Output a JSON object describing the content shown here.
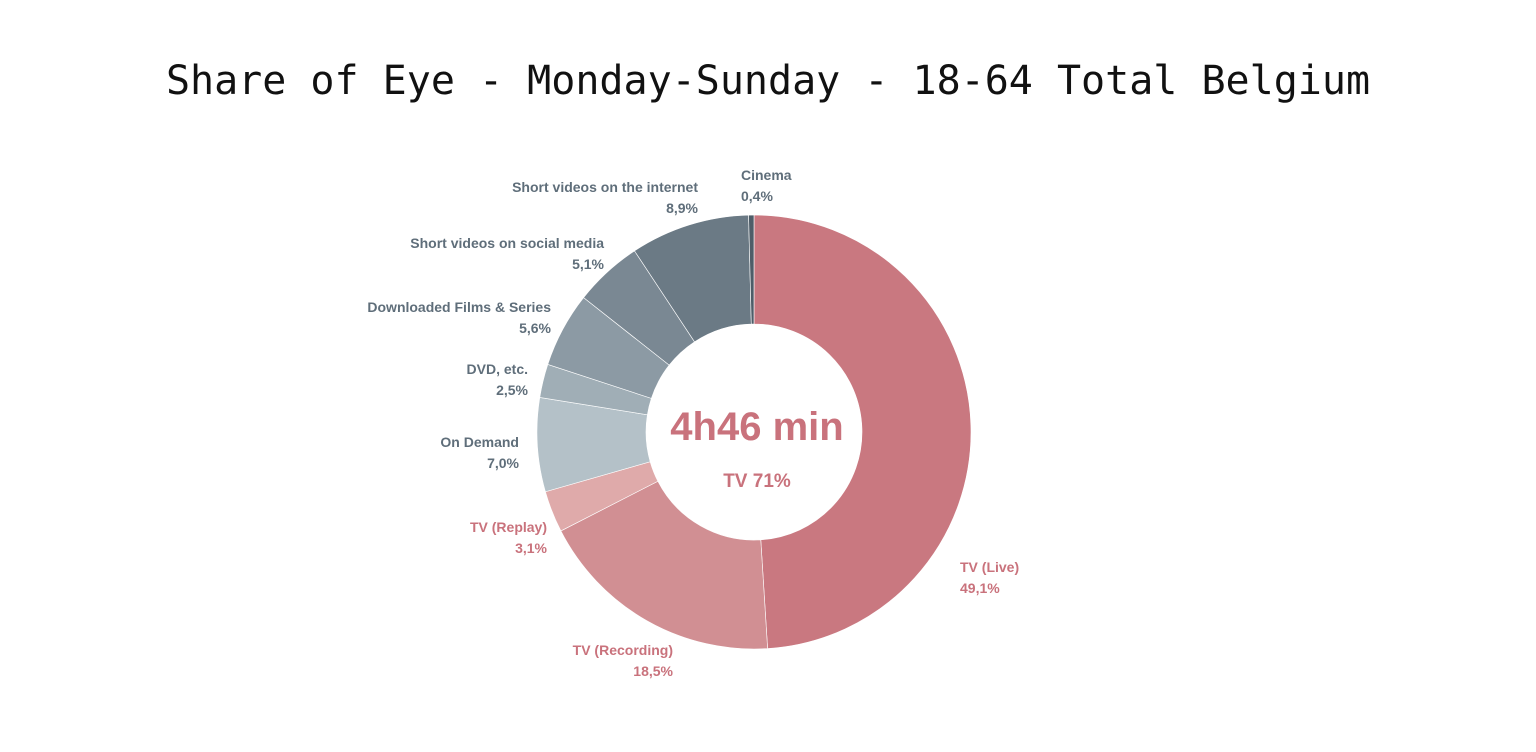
{
  "chart_data": {
    "type": "pie",
    "title": "Share of Eye - Monday-Sunday - 18-64 Total Belgium",
    "center_value": "4h46 min",
    "center_subtitle": "TV 71%",
    "slices": [
      {
        "label": "TV (Live)",
        "value_text": "49,1%",
        "value": 49.1,
        "color": "#c97880",
        "label_color": "#c9727c"
      },
      {
        "label": "TV (Recording)",
        "value_text": "18,5%",
        "value": 18.5,
        "color": "#d18f93",
        "label_color": "#c9727c"
      },
      {
        "label": "TV (Replay)",
        "value_text": "3,1%",
        "value": 3.1,
        "color": "#dfaaaa",
        "label_color": "#c9727c"
      },
      {
        "label": "On Demand",
        "value_text": "7,0%",
        "value": 7.0,
        "color": "#b4c1c8",
        "label_color": "#5f6e7a"
      },
      {
        "label": "DVD, etc.",
        "value_text": "2,5%",
        "value": 2.5,
        "color": "#a0aeb6",
        "label_color": "#5f6e7a"
      },
      {
        "label": "Downloaded Films & Series",
        "value_text": "5,6%",
        "value": 5.6,
        "color": "#8c9aa4",
        "label_color": "#5f6e7a"
      },
      {
        "label": "Short videos on social media",
        "value_text": "5,1%",
        "value": 5.1,
        "color": "#7a8893",
        "label_color": "#5f6e7a"
      },
      {
        "label": "Short videos on the internet",
        "value_text": "8,9%",
        "value": 8.9,
        "color": "#6b7a85",
        "label_color": "#5f6e7a"
      },
      {
        "label": "Cinema",
        "value_text": "0,4%",
        "value": 0.4,
        "color": "#4e5d68",
        "label_color": "#5f6e7a"
      }
    ],
    "center_color": "#c9727c"
  }
}
